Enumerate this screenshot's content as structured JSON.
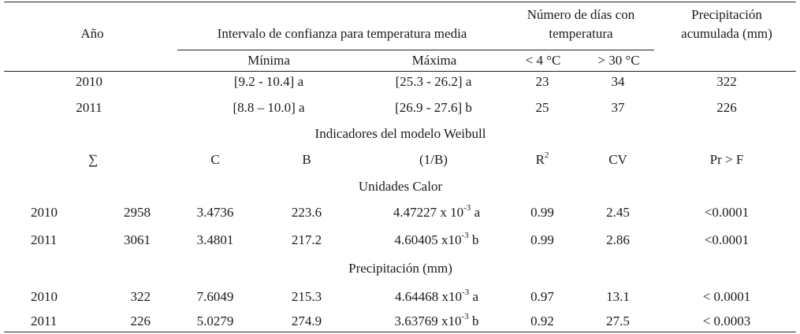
{
  "header": {
    "year": "Año",
    "interval": "Intervalo de confianza para temperatura media",
    "days_line1": "Número de días con",
    "days_line2": "temperatura",
    "precip_line1": "Precipitación",
    "precip_line2": "acumulada (mm)",
    "min": "Mínima",
    "max": "Máxima",
    "lt4": "< 4 °C",
    "gt30": "> 30 °C"
  },
  "climate_rows": [
    {
      "year": "2010",
      "min": "[9.2 - 10.4] a",
      "max": "[25.3 - 26.2] a",
      "lt4": "23",
      "gt30": "34",
      "precip": "322"
    },
    {
      "year": "2011",
      "min": "[8.8 – 10.0] a",
      "max": "[26.9 - 27.6] b",
      "lt4": "25",
      "gt30": "37",
      "precip": "226"
    }
  ],
  "weibull_title": "Indicadores del modelo Weibull",
  "weibull_header": {
    "sum": "∑",
    "c": "C",
    "b": "B",
    "inv_b": "(1/B)",
    "r2_base": "R",
    "r2_sup": "2",
    "cv": "CV",
    "pr": "Pr > F"
  },
  "sections": [
    {
      "title": "Unidades Calor",
      "rows": [
        {
          "year": "2010",
          "sum": "2958",
          "c": "3.4736",
          "b": "223.6",
          "inv_base": "4.47227 x 10",
          "inv_exp": "-3",
          "inv_letter": " a",
          "r2": "0.99",
          "cv": "2.45",
          "pr": "<0.0001"
        },
        {
          "year": "2011",
          "sum": "3061",
          "c": "3.4801",
          "b": "217.2",
          "inv_base": "4.60405 x10",
          "inv_exp": "-3",
          "inv_letter": " b",
          "r2": "0.99",
          "cv": "2.86",
          "pr": "<0.0001"
        }
      ]
    },
    {
      "title": "Precipitación (mm)",
      "rows": [
        {
          "year": "2010",
          "sum": "322",
          "c": "7.6049",
          "b": "215.3",
          "inv_base": "4.64468 x10",
          "inv_exp": "-3",
          "inv_letter": " a",
          "r2": "0.97",
          "cv": "13.1",
          "pr": "< 0.0001"
        },
        {
          "year": "2011",
          "sum": "226",
          "c": "5.0279",
          "b": "274.9",
          "inv_base": "3.63769 x10",
          "inv_exp": "-3",
          "inv_letter": " b",
          "r2": "0.92",
          "cv": "27.5",
          "pr": "< 0.0003"
        }
      ]
    }
  ]
}
